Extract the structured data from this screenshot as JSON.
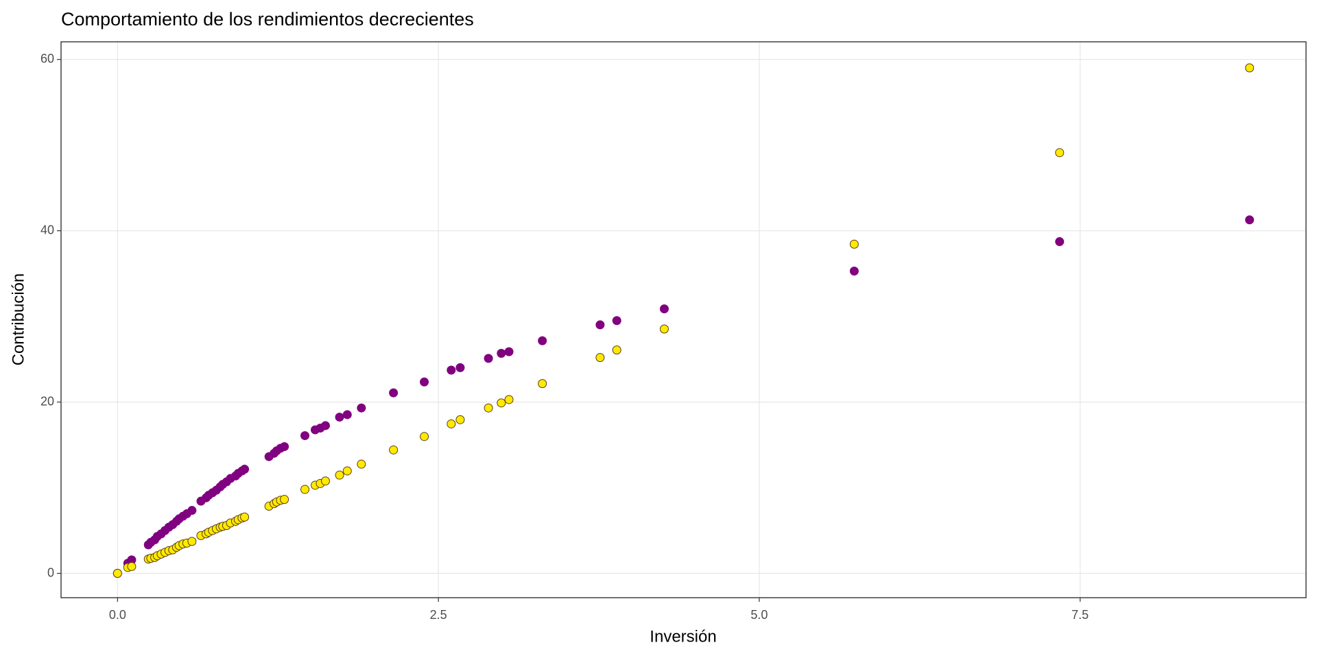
{
  "chart_data": {
    "type": "scatter",
    "title": "Comportamiento de los rendimientos decrecientes",
    "x_label": "Inversión",
    "y_label": "Contribución",
    "xlim": [
      -0.44,
      9.26
    ],
    "ylim": [
      -2.84,
      62.06
    ],
    "xticks": [
      {
        "value": 0,
        "label": "0.0"
      },
      {
        "value": 2.5,
        "label": "2.5"
      },
      {
        "value": 5,
        "label": "5.0"
      },
      {
        "value": 7.5,
        "label": "7.5"
      }
    ],
    "yticks": [
      0,
      20,
      40,
      60
    ],
    "grid": true,
    "x": [
      0,
      0.08,
      0.11,
      0.24,
      0.26,
      0.29,
      0.31,
      0.34,
      0.37,
      0.4,
      0.43,
      0.46,
      0.48,
      0.51,
      0.54,
      0.58,
      0.65,
      0.69,
      0.71,
      0.74,
      0.77,
      0.8,
      0.82,
      0.85,
      0.88,
      0.92,
      0.94,
      0.97,
      0.99,
      1.18,
      1.22,
      1.24,
      1.27,
      1.3,
      1.46,
      1.54,
      1.58,
      1.62,
      1.73,
      1.79,
      1.9,
      2.15,
      2.39,
      2.6,
      2.67,
      2.89,
      2.99,
      3.05,
      3.31,
      3.76,
      3.89,
      4.26,
      5.74,
      7.34,
      8.82
    ],
    "series": [
      {
        "color": "#800080",
        "values": [
          0,
          1.18,
          1.57,
          3.33,
          3.63,
          3.92,
          4.31,
          4.61,
          5.0,
          5.39,
          5.69,
          6.08,
          6.37,
          6.67,
          6.96,
          7.35,
          8.43,
          8.82,
          9.12,
          9.41,
          9.71,
          10.1,
          10.39,
          10.69,
          11.08,
          11.37,
          11.67,
          11.96,
          12.16,
          13.63,
          14.02,
          14.31,
          14.61,
          14.8,
          16.08,
          16.76,
          16.96,
          17.25,
          18.24,
          18.53,
          19.31,
          21.08,
          22.35,
          23.73,
          24.02,
          25.1,
          25.69,
          25.88,
          27.16,
          29.02,
          29.51,
          30.88,
          35.29,
          38.73,
          41.27
        ]
      },
      {
        "color": "#ffea00",
        "edgecolor": "#5a3a1a",
        "values": [
          0,
          0.69,
          0.8,
          1.67,
          1.76,
          1.86,
          2.06,
          2.25,
          2.45,
          2.65,
          2.75,
          3.04,
          3.24,
          3.43,
          3.53,
          3.73,
          4.41,
          4.61,
          4.8,
          5.0,
          5.2,
          5.39,
          5.49,
          5.59,
          5.88,
          6.08,
          6.27,
          6.47,
          6.57,
          7.84,
          8.14,
          8.33,
          8.53,
          8.63,
          9.8,
          10.29,
          10.49,
          10.78,
          11.47,
          11.96,
          12.75,
          14.41,
          15.98,
          17.45,
          17.94,
          19.31,
          19.9,
          20.29,
          22.16,
          25.2,
          26.08,
          28.53,
          38.43,
          49.12,
          59.02
        ]
      }
    ]
  }
}
